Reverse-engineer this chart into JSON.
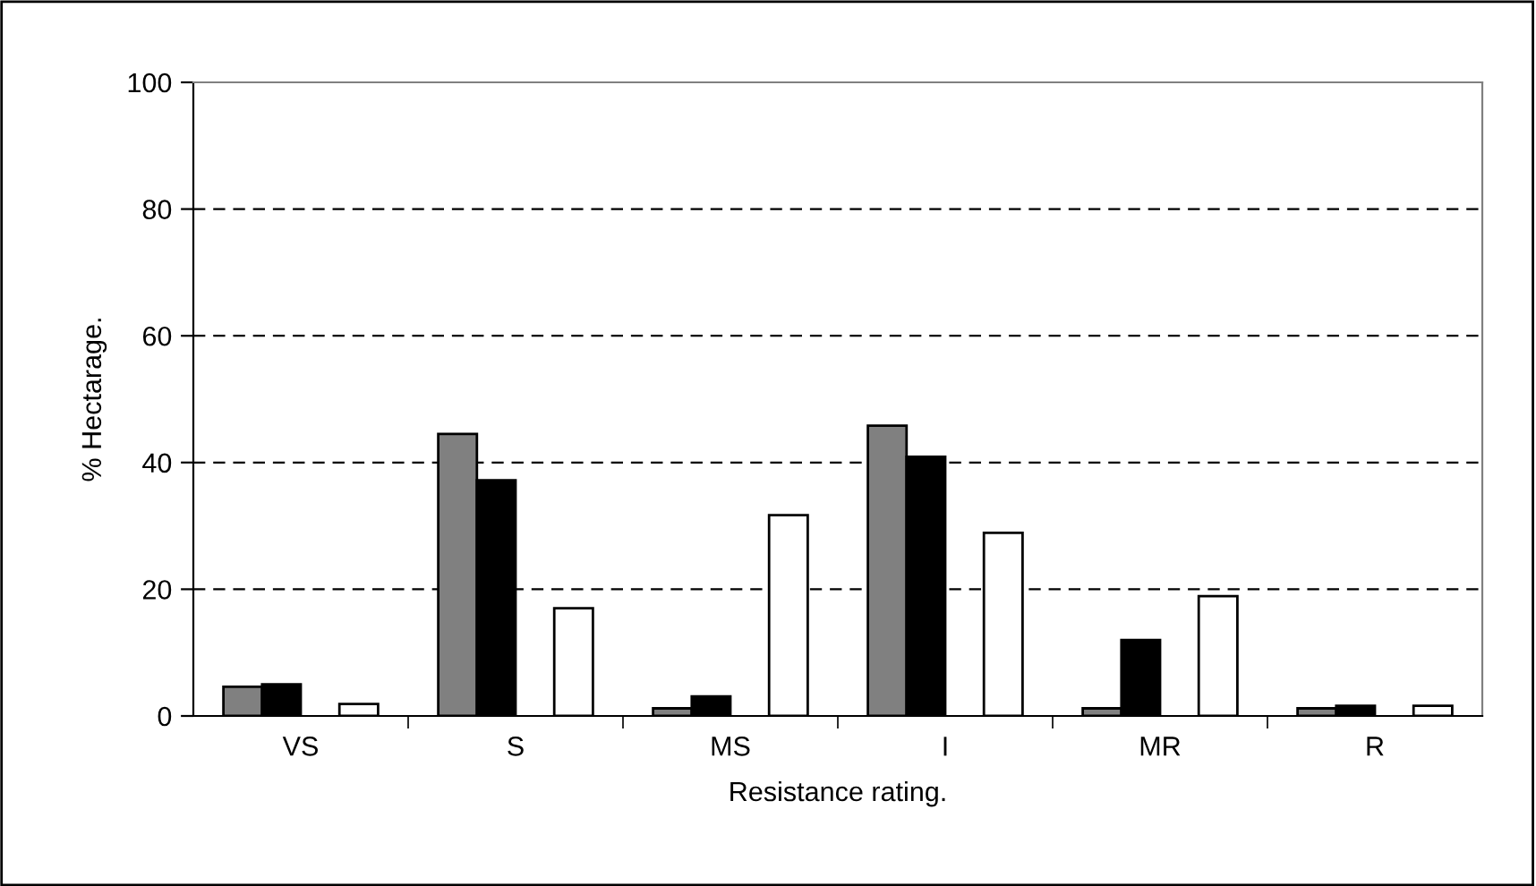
{
  "chart_data": {
    "type": "bar",
    "xlabel": "Resistance rating.",
    "ylabel": "% Hectarage.",
    "categories": [
      "VS",
      "S",
      "MS",
      "I",
      "MR",
      "R"
    ],
    "series": [
      {
        "color": "#808080",
        "values": [
          4.6,
          44.5,
          1.2,
          45.8,
          1.2,
          1.2
        ]
      },
      {
        "color": "#000000",
        "values": [
          5.0,
          37.2,
          3.1,
          40.9,
          12.0,
          1.6
        ]
      },
      {
        "color": "#ffffff",
        "values": [
          1.9,
          17.0,
          31.7,
          28.9,
          18.9,
          1.6
        ]
      }
    ],
    "ylim": [
      0,
      100
    ],
    "yticks": [
      0,
      20,
      40,
      60,
      80,
      100
    ],
    "grid": "y",
    "line_style": "dashed",
    "legend": false
  }
}
